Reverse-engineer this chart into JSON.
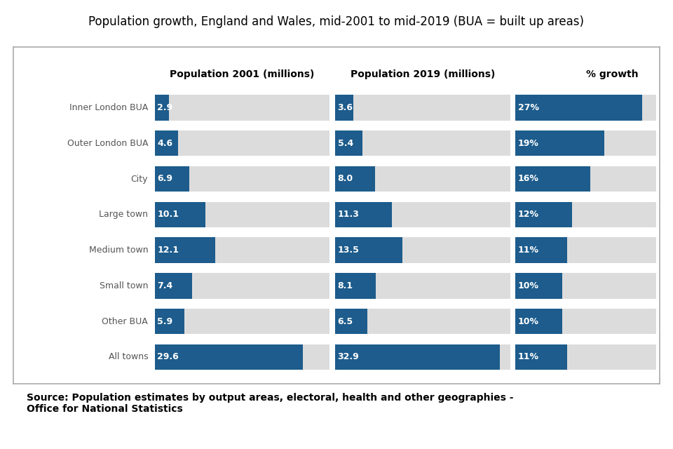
{
  "title": "Population growth, England and Wales, mid-2001 to mid-2019 (BUA = built up areas)",
  "categories": [
    "Inner London BUA",
    "Outer London BUA",
    "City",
    "Large town",
    "Medium town",
    "Small town",
    "Other BUA",
    "All towns"
  ],
  "pop2001": [
    2.9,
    4.6,
    6.9,
    10.1,
    12.1,
    7.4,
    5.9,
    29.6
  ],
  "pop2019": [
    3.6,
    5.4,
    8.0,
    11.3,
    13.5,
    8.1,
    6.5,
    32.9
  ],
  "pct_growth": [
    27,
    19,
    16,
    12,
    11,
    10,
    10,
    11
  ],
  "pop2001_max": 35.0,
  "pop2019_max": 35.0,
  "pct_max": 30.0,
  "bar_color": "#1d5c8c",
  "bg_color": "#dcdcdc",
  "col1_header": "Population 2001 (millions)",
  "col2_header": "Population 2019 (millions)",
  "col3_header": "% growth",
  "source_text": "Source: Population estimates by output areas, electoral, health and other geographies -\nOffice for National Statistics",
  "title_fontsize": 12,
  "header_fontsize": 10,
  "label_fontsize": 9,
  "bar_label_fontsize": 9,
  "source_fontsize": 10
}
